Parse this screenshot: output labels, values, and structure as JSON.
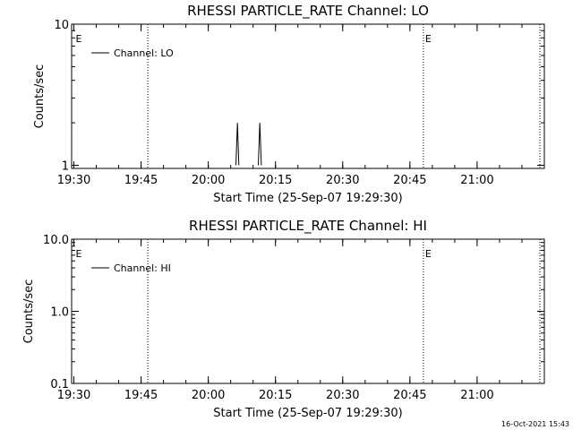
{
  "chart_data": [
    {
      "type": "line",
      "title": "RHESSI  PARTICLE_RATE  Channel:  LO",
      "xlabel": "Start Time (25-Sep-07 19:29:30)",
      "ylabel": "Counts/sec",
      "x_ticks": [
        "19:30",
        "19:45",
        "20:00",
        "20:15",
        "20:30",
        "20:45",
        "21:00"
      ],
      "x_range": [
        "19:29:30",
        "21:15:00"
      ],
      "y_scale": "log",
      "y_ticks": [
        "1",
        "10"
      ],
      "ylim": [
        0.95,
        10
      ],
      "legend": "top-left",
      "series": [
        {
          "name": "Channel: LO",
          "x": [
            "20:06:10",
            "20:06:30",
            "20:06:50",
            "20:11:10",
            "20:11:30",
            "20:11:50"
          ],
          "values": [
            1,
            2,
            1,
            1,
            2,
            1
          ]
        }
      ],
      "markers": {
        "label": "E",
        "times": [
          "19:30:00",
          "20:48:00"
        ]
      },
      "vlines": [
        "19:46:30",
        "20:48:00",
        "21:14:00"
      ]
    },
    {
      "type": "line",
      "title": "RHESSI  PARTICLE_RATE  Channel:  HI",
      "xlabel": "Start Time (25-Sep-07 19:29:30)",
      "ylabel": "Counts/sec",
      "x_ticks": [
        "19:30",
        "19:45",
        "20:00",
        "20:15",
        "20:30",
        "20:45",
        "21:00"
      ],
      "x_range": [
        "19:29:30",
        "21:15:00"
      ],
      "y_scale": "log",
      "y_ticks": [
        "0.1",
        "1.0",
        "10.0"
      ],
      "ylim": [
        0.1,
        10
      ],
      "legend": "top-left",
      "series": [
        {
          "name": "Channel: HI",
          "x": [],
          "values": []
        }
      ],
      "markers": {
        "label": "E",
        "times": [
          "19:30:00",
          "20:48:00"
        ]
      },
      "vlines": [
        "19:46:30",
        "20:48:00",
        "21:14:00"
      ]
    }
  ],
  "timestamp": "16-Oct-2021 15:43"
}
